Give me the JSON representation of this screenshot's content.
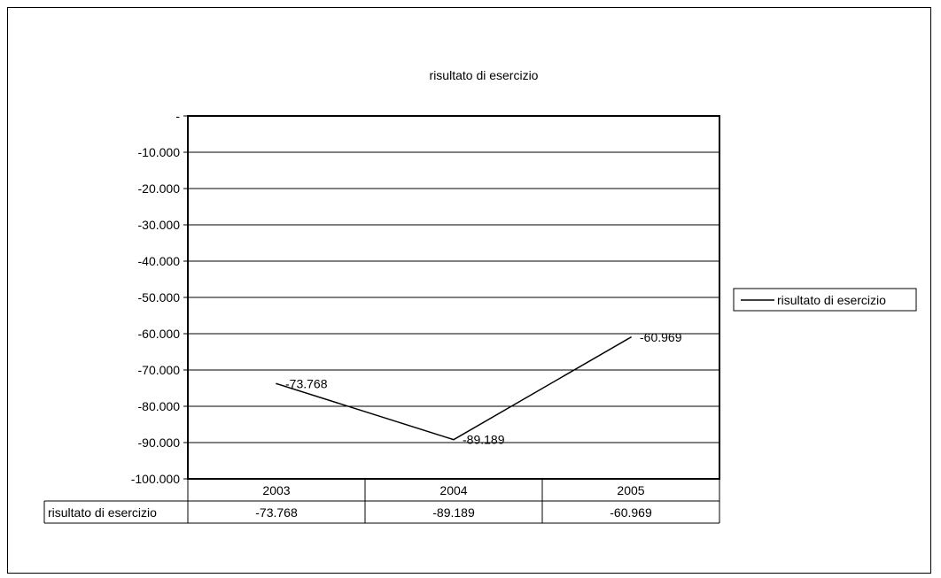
{
  "chart_data": {
    "type": "line",
    "title": "risultato di esercizio",
    "categories": [
      "2003",
      "2004",
      "2005"
    ],
    "series": [
      {
        "name": "risultato di esercizio",
        "values": [
          -73768,
          -89189,
          -60969
        ],
        "labels": [
          "-73.768",
          "-89.189",
          "-60.969"
        ],
        "color": "#000000"
      }
    ],
    "ylim": [
      -100000,
      0
    ],
    "yticks": [
      "-",
      "-10.000",
      "-20.000",
      "-30.000",
      "-40.000",
      "-50.000",
      "-60.000",
      "-70.000",
      "-80.000",
      "-90.000",
      "-100.000"
    ],
    "grid": true,
    "legend": "right",
    "data_table": {
      "row_label": "risultato di esercizio",
      "values": [
        "-73.768",
        "-89.189",
        "-60.969"
      ]
    }
  }
}
